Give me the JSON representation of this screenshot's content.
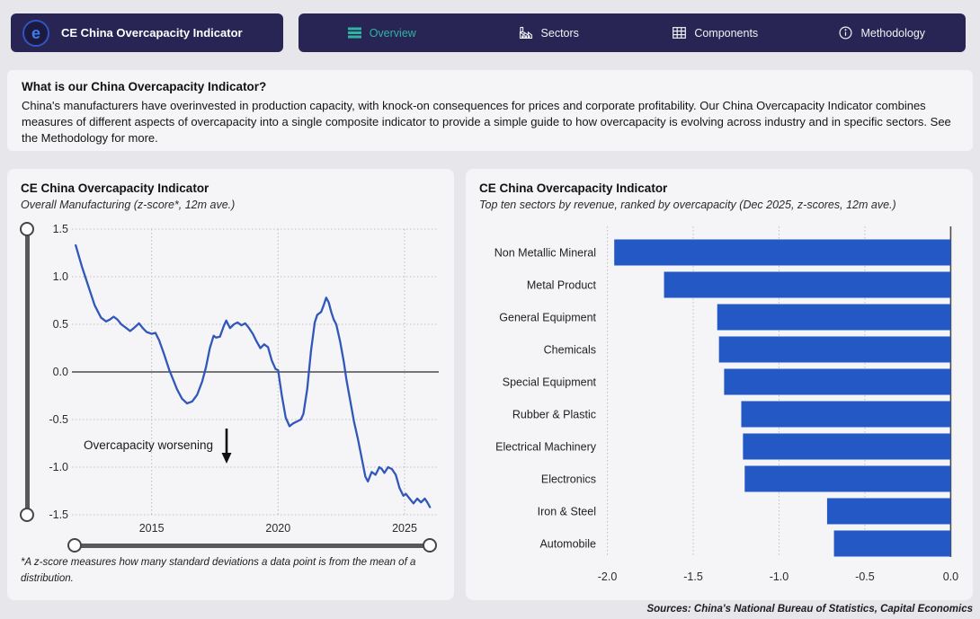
{
  "app": {
    "title": "CE China Overcapacity Indicator",
    "nav": [
      {
        "label": "Overview",
        "icon": "menu-icon",
        "active": true
      },
      {
        "label": "Sectors",
        "icon": "factory-icon",
        "active": false
      },
      {
        "label": "Components",
        "icon": "table-icon",
        "active": false
      },
      {
        "label": "Methodology",
        "icon": "info-icon",
        "active": false
      }
    ]
  },
  "intro": {
    "heading": "What is our China Overcapacity Indicator?",
    "body": "China's manufacturers have overinvested in production capacity, with knock-on consequences for prices and corporate profitability.  Our China Overcapacity Indicator combines measures of different aspects of overcapacity into a single composite indicator to provide a simple guide to how overcapacity is evolving across industry and in specific sectors. See the Methodology for more."
  },
  "line_panel": {
    "title": "CE China Overcapacity Indicator",
    "subtitle": "Overall Manufacturing (z-score*, 12m ave.)",
    "annotation": "Overcapacity worsening",
    "footnote": "*A z-score measures how many standard deviations a data point is from the mean of a distribution."
  },
  "bar_panel": {
    "title": "CE China Overcapacity Indicator",
    "subtitle": "Top ten sectors by revenue, ranked by overcapacity (Dec 2025, z-scores, 12m ave.)"
  },
  "footer": {
    "sources": "Sources: China's National Bureau of Statistics, Capital Economics"
  },
  "colors": {
    "nav_bg": "#282554",
    "active_tab": "#2fb3a3",
    "line": "#3157ba",
    "bar": "#2458c5",
    "page_bg": "#e7e7eb",
    "panel_bg": "#f5f5f7",
    "axis": "#4d4d4d",
    "grid": "#bfbfc3"
  },
  "chart_data": [
    {
      "type": "line",
      "title": "CE China Overcapacity Indicator",
      "subtitle": "Overall Manufacturing (z-score*, 12m ave.)",
      "ylabel": "z-score",
      "xlim": [
        2011.85,
        2026.35
      ],
      "ylim": [
        -1.5,
        1.5
      ],
      "xticks": [
        2015,
        2020,
        2025
      ],
      "yticks": [
        1.5,
        1.0,
        0.5,
        0.0,
        -0.5,
        -1.0,
        -1.5
      ],
      "grid": true,
      "zero_line": true,
      "annotation": "Overcapacity worsening",
      "x": [
        2012.0,
        2012.25,
        2012.5,
        2012.75,
        2013.0,
        2013.2,
        2013.35,
        2013.5,
        2013.65,
        2013.8,
        2014.0,
        2014.15,
        2014.3,
        2014.5,
        2014.65,
        2014.8,
        2015.0,
        2015.15,
        2015.3,
        2015.5,
        2015.7,
        2015.85,
        2016.0,
        2016.2,
        2016.4,
        2016.6,
        2016.8,
        2017.0,
        2017.15,
        2017.3,
        2017.45,
        2017.55,
        2017.7,
        2017.85,
        2017.95,
        2018.1,
        2018.25,
        2018.4,
        2018.55,
        2018.7,
        2018.85,
        2019.0,
        2019.15,
        2019.3,
        2019.45,
        2019.6,
        2019.75,
        2019.9,
        2020.0,
        2020.15,
        2020.3,
        2020.45,
        2020.6,
        2020.75,
        2020.9,
        2021.0,
        2021.15,
        2021.3,
        2021.45,
        2021.55,
        2021.7,
        2021.8,
        2021.9,
        2022.0,
        2022.1,
        2022.2,
        2022.3,
        2022.45,
        2022.6,
        2022.7,
        2022.85,
        2023.0,
        2023.15,
        2023.3,
        2023.45,
        2023.55,
        2023.7,
        2023.85,
        2024.0,
        2024.1,
        2024.2,
        2024.35,
        2024.5,
        2024.65,
        2024.8,
        2024.95,
        2025.05,
        2025.2,
        2025.35,
        2025.5,
        2025.65,
        2025.8,
        2025.9,
        2026.0
      ],
      "y": [
        1.33,
        1.1,
        0.9,
        0.7,
        0.57,
        0.53,
        0.55,
        0.58,
        0.55,
        0.5,
        0.46,
        0.43,
        0.46,
        0.51,
        0.46,
        0.42,
        0.4,
        0.41,
        0.33,
        0.18,
        0.02,
        -0.08,
        -0.18,
        -0.28,
        -0.33,
        -0.31,
        -0.24,
        -0.1,
        0.05,
        0.25,
        0.38,
        0.36,
        0.37,
        0.48,
        0.54,
        0.46,
        0.5,
        0.52,
        0.49,
        0.51,
        0.46,
        0.4,
        0.32,
        0.25,
        0.29,
        0.26,
        0.12,
        0.03,
        0.02,
        -0.25,
        -0.48,
        -0.57,
        -0.54,
        -0.52,
        -0.5,
        -0.44,
        -0.18,
        0.22,
        0.52,
        0.6,
        0.63,
        0.7,
        0.78,
        0.73,
        0.63,
        0.55,
        0.5,
        0.32,
        0.1,
        -0.08,
        -0.3,
        -0.52,
        -0.7,
        -0.9,
        -1.1,
        -1.15,
        -1.05,
        -1.08,
        -1.0,
        -1.02,
        -1.06,
        -1.0,
        -1.02,
        -1.08,
        -1.22,
        -1.3,
        -1.28,
        -1.33,
        -1.38,
        -1.33,
        -1.37,
        -1.33,
        -1.37,
        -1.42
      ]
    },
    {
      "type": "bar",
      "orientation": "horizontal",
      "title": "CE China Overcapacity Indicator",
      "subtitle": "Top ten sectors by revenue, ranked by overcapacity (Dec 2025, z-scores, 12m ave.)",
      "categories": [
        "Non Metallic Mineral",
        "Metal Product",
        "General Equipment",
        "Chemicals",
        "Special Equipment",
        "Rubber & Plastic",
        "Electrical Machinery",
        "Electronics",
        "Iron & Steel",
        "Automobile"
      ],
      "values": [
        -1.96,
        -1.67,
        -1.36,
        -1.35,
        -1.32,
        -1.22,
        -1.21,
        -1.2,
        -0.72,
        -0.68
      ],
      "xticks": [
        -2.0,
        -1.5,
        -1.0,
        -0.5,
        0.0
      ],
      "xlim": [
        -2.05,
        0
      ],
      "grid": true
    }
  ]
}
